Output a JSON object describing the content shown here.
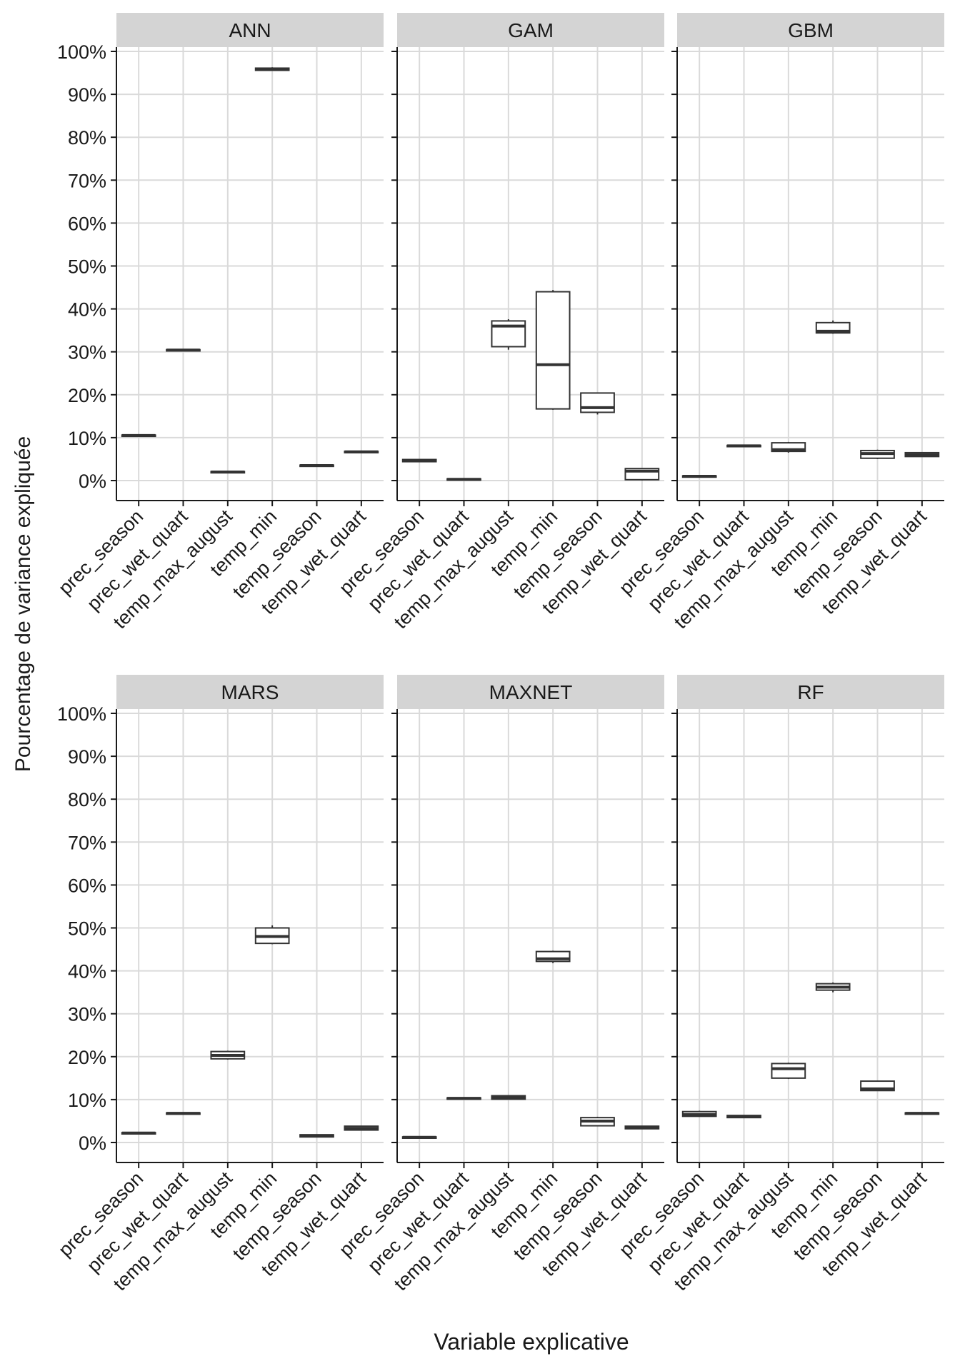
{
  "chart_data": {
    "type": "boxplot",
    "xlabel": "Variable explicative",
    "ylabel": "Pourcentage de variance expliquée",
    "ylim": [
      0,
      100
    ],
    "y_ticks": [
      "0%",
      "10%",
      "20%",
      "30%",
      "40%",
      "50%",
      "60%",
      "70%",
      "80%",
      "90%",
      "100%"
    ],
    "grid": true,
    "categories": [
      "prec_season",
      "prec_wet_quart",
      "temp_max_august",
      "temp_min",
      "temp_season",
      "temp_wet_quart"
    ],
    "panels": [
      {
        "name": "ANN",
        "boxes": [
          {
            "min": 10.3,
            "q1": 10.3,
            "median": 10.5,
            "q3": 10.6,
            "max": 10.7
          },
          {
            "min": 30.2,
            "q1": 30.2,
            "median": 30.4,
            "q3": 30.5,
            "max": 30.6
          },
          {
            "min": 1.8,
            "q1": 1.8,
            "median": 2.0,
            "q3": 2.1,
            "max": 2.2
          },
          {
            "min": 95.6,
            "q1": 95.6,
            "median": 95.9,
            "q3": 96.1,
            "max": 96.3
          },
          {
            "min": 3.3,
            "q1": 3.3,
            "median": 3.5,
            "q3": 3.6,
            "max": 3.7
          },
          {
            "min": 6.5,
            "q1": 6.5,
            "median": 6.7,
            "q3": 6.8,
            "max": 6.9
          }
        ]
      },
      {
        "name": "GAM",
        "boxes": [
          {
            "min": 4.3,
            "q1": 4.4,
            "median": 4.7,
            "q3": 4.9,
            "max": 5.0
          },
          {
            "min": 0.0,
            "q1": 0.1,
            "median": 0.3,
            "q3": 0.4,
            "max": 0.5
          },
          {
            "min": 30.5,
            "q1": 31.2,
            "median": 36.0,
            "q3": 37.2,
            "max": 37.6
          },
          {
            "min": 16.5,
            "q1": 16.7,
            "median": 27.0,
            "q3": 44.0,
            "max": 44.4
          },
          {
            "min": 15.4,
            "q1": 15.9,
            "median": 17.0,
            "q3": 20.4,
            "max": 20.5
          },
          {
            "min": 0.0,
            "q1": 0.2,
            "median": 2.2,
            "q3": 2.8,
            "max": 2.9
          }
        ]
      },
      {
        "name": "GBM",
        "boxes": [
          {
            "min": 0.7,
            "q1": 0.8,
            "median": 1.0,
            "q3": 1.1,
            "max": 1.2
          },
          {
            "min": 7.8,
            "q1": 7.9,
            "median": 8.1,
            "q3": 8.2,
            "max": 8.3
          },
          {
            "min": 6.5,
            "q1": 6.8,
            "median": 7.2,
            "q3": 8.8,
            "max": 9.0
          },
          {
            "min": 34.2,
            "q1": 34.4,
            "median": 34.8,
            "q3": 36.8,
            "max": 37.3
          },
          {
            "min": 5.0,
            "q1": 5.2,
            "median": 6.3,
            "q3": 7.0,
            "max": 7.2
          },
          {
            "min": 5.5,
            "q1": 5.6,
            "median": 6.0,
            "q3": 6.5,
            "max": 6.6
          }
        ]
      },
      {
        "name": "MARS",
        "boxes": [
          {
            "min": 2.0,
            "q1": 2.0,
            "median": 2.2,
            "q3": 2.3,
            "max": 2.4
          },
          {
            "min": 6.5,
            "q1": 6.6,
            "median": 6.8,
            "q3": 6.9,
            "max": 7.0
          },
          {
            "min": 19.3,
            "q1": 19.5,
            "median": 20.3,
            "q3": 21.2,
            "max": 21.4
          },
          {
            "min": 46.2,
            "q1": 46.4,
            "median": 48.0,
            "q3": 50.0,
            "max": 50.6
          },
          {
            "min": 1.2,
            "q1": 1.3,
            "median": 1.6,
            "q3": 1.8,
            "max": 1.9
          },
          {
            "min": 2.8,
            "q1": 2.9,
            "median": 3.3,
            "q3": 3.8,
            "max": 3.9
          }
        ]
      },
      {
        "name": "MAXNET",
        "boxes": [
          {
            "min": 0.9,
            "q1": 1.0,
            "median": 1.2,
            "q3": 1.3,
            "max": 1.4
          },
          {
            "min": 10.1,
            "q1": 10.1,
            "median": 10.3,
            "q3": 10.4,
            "max": 10.5
          },
          {
            "min": 10.0,
            "q1": 10.1,
            "median": 10.4,
            "q3": 10.9,
            "max": 11.0
          },
          {
            "min": 41.8,
            "q1": 42.2,
            "median": 42.8,
            "q3": 44.5,
            "max": 44.7
          },
          {
            "min": 3.8,
            "q1": 3.9,
            "median": 5.0,
            "q3": 5.8,
            "max": 6.0
          },
          {
            "min": 3.1,
            "q1": 3.2,
            "median": 3.5,
            "q3": 3.8,
            "max": 3.9
          }
        ]
      },
      {
        "name": "RF",
        "boxes": [
          {
            "min": 6.0,
            "q1": 6.1,
            "median": 6.5,
            "q3": 7.2,
            "max": 7.4
          },
          {
            "min": 5.8,
            "q1": 5.8,
            "median": 6.1,
            "q3": 6.3,
            "max": 6.4
          },
          {
            "min": 14.8,
            "q1": 15.0,
            "median": 17.2,
            "q3": 18.4,
            "max": 18.6
          },
          {
            "min": 35.0,
            "q1": 35.5,
            "median": 36.2,
            "q3": 37.0,
            "max": 37.3
          },
          {
            "min": 12.0,
            "q1": 12.1,
            "median": 12.5,
            "q3": 14.3,
            "max": 14.4
          },
          {
            "min": 6.6,
            "q1": 6.6,
            "median": 6.8,
            "q3": 6.9,
            "max": 7.0
          }
        ]
      }
    ]
  }
}
